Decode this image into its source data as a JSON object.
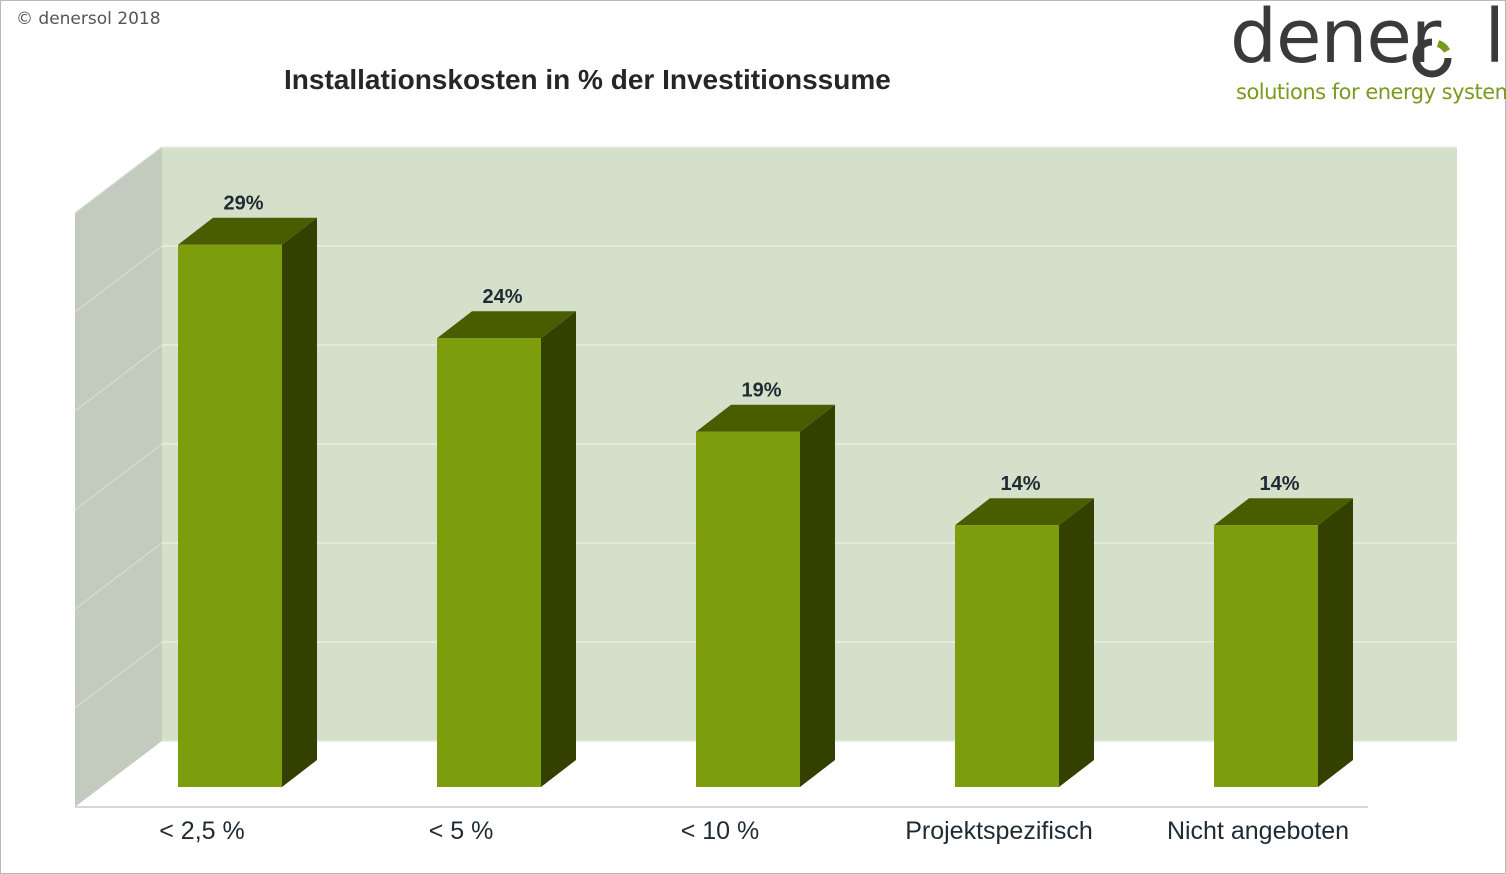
{
  "copyright": "© denersol 2018",
  "logo": {
    "wordmark": "denersol",
    "tagline": "solutions for energy systems"
  },
  "colors": {
    "bar_front": "#7c9e0c",
    "bar_side": "#334000",
    "bar_top": "#4a5c00",
    "back_wall": "#d5e0cb",
    "side_wall": "#c2cbbe",
    "grid": "#ebeee4",
    "logo_green": "#7a9a1f",
    "logo_text": "#3a3a3a"
  },
  "chart_data": {
    "type": "bar",
    "title": "Installationskosten in % der Investitionssume",
    "categories": [
      "< 2,5 %",
      "< 5 %",
      "< 10 %",
      "Projektspezifisch",
      "Nicht angeboten"
    ],
    "values": [
      29,
      24,
      19,
      14,
      14
    ],
    "data_labels": [
      "29%",
      "24%",
      "19%",
      "14%",
      "14%"
    ],
    "unit": "%",
    "ylim": [
      0,
      30
    ],
    "grid": true,
    "style": "3d-column",
    "legend": "none"
  }
}
